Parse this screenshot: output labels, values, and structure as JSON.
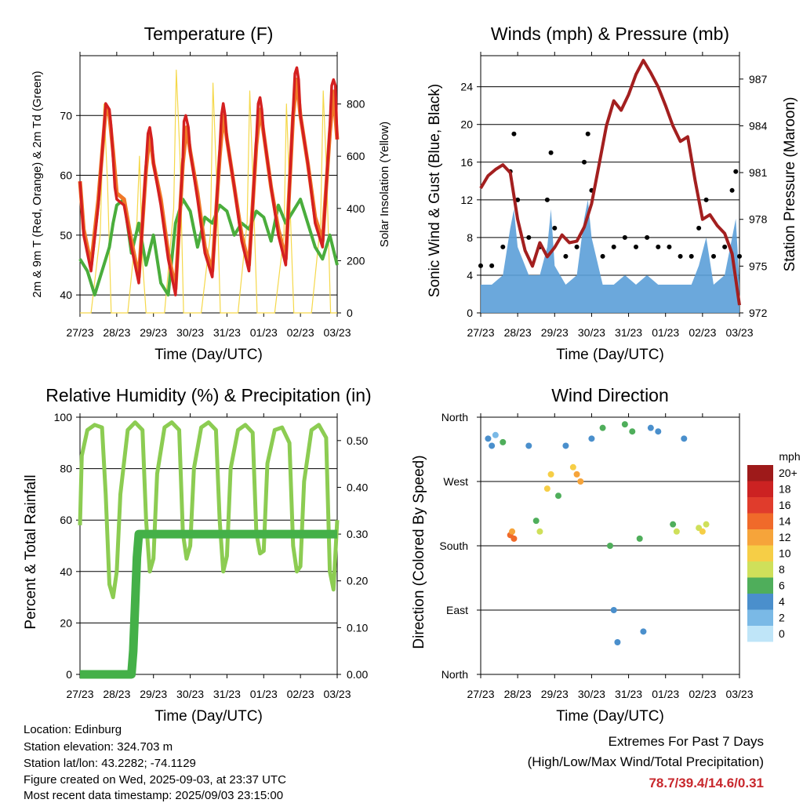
{
  "chart_data": [
    {
      "type": "line",
      "title": "Temperature (F)",
      "xlabel": "Time (Day/UTC)",
      "ylabel": "2m & 9m T (Red, Orange) & 2m Td (Green)",
      "y2label": "Solar Insolation (Yellow)",
      "x_ticks": [
        "27/23",
        "28/23",
        "29/23",
        "30/23",
        "31/23",
        "01/23",
        "02/23",
        "03/23"
      ],
      "ylim": [
        37,
        80
      ],
      "y_ticks": [
        40,
        50,
        60,
        70
      ],
      "y2lim": [
        0,
        985
      ],
      "y2_ticks": [
        0,
        200,
        400,
        600,
        800
      ],
      "grid": true,
      "series": [
        {
          "name": "2m T",
          "color": "#d42020",
          "x": [
            0,
            0.1,
            0.3,
            0.5,
            0.7,
            0.8,
            0.85,
            0.9,
            0.95,
            1.0,
            1.2,
            1.4,
            1.6,
            1.8,
            1.85,
            1.9,
            1.95,
            2.0,
            2.2,
            2.4,
            2.6,
            2.8,
            2.83,
            2.88,
            2.95,
            3.0,
            3.2,
            3.4,
            3.6,
            3.8,
            3.85,
            3.9,
            3.95,
            4.0,
            4.2,
            4.4,
            4.6,
            4.8,
            4.85,
            4.9,
            4.95,
            5.0,
            5.2,
            5.4,
            5.6,
            5.8,
            5.85,
            5.9,
            5.95,
            6.0,
            6.2,
            6.4,
            6.6,
            6.8,
            6.85,
            6.9,
            6.95,
            7.0
          ],
          "values": [
            59,
            50,
            44,
            55,
            72,
            71,
            68,
            63,
            58,
            56,
            55,
            48,
            42,
            62,
            67,
            68,
            66,
            62,
            55,
            46,
            40,
            63,
            69,
            70,
            68,
            64,
            56,
            47,
            43,
            64,
            70,
            72,
            70,
            66,
            58,
            49,
            44,
            66,
            72,
            73,
            71,
            67,
            58,
            50,
            45,
            71,
            77,
            78,
            76,
            70,
            62,
            52,
            48,
            68,
            75,
            76,
            75,
            66
          ]
        },
        {
          "name": "9m T",
          "color": "#f07828",
          "x": [
            0,
            0.1,
            0.3,
            0.5,
            0.7,
            0.8,
            0.9,
            1.0,
            1.2,
            1.4,
            1.6,
            1.8,
            1.9,
            2.0,
            2.2,
            2.4,
            2.6,
            2.8,
            2.9,
            3.0,
            3.2,
            3.4,
            3.6,
            3.8,
            3.9,
            4.0,
            4.2,
            4.4,
            4.6,
            4.8,
            4.9,
            5.0,
            5.2,
            5.4,
            5.6,
            5.8,
            5.9,
            6.0,
            6.2,
            6.4,
            6.6,
            6.8,
            6.9,
            7.0
          ],
          "values": [
            59,
            51,
            45,
            56,
            71,
            70,
            64,
            57,
            56,
            49,
            43,
            61,
            67,
            62,
            56,
            47,
            41,
            62,
            68,
            64,
            57,
            48,
            44,
            63,
            70,
            66,
            58,
            50,
            45,
            65,
            71,
            67,
            58,
            51,
            46,
            70,
            76,
            70,
            62,
            53,
            49,
            67,
            74,
            66
          ]
        },
        {
          "name": "2m Td",
          "color": "#4aad3c",
          "x": [
            0,
            0.2,
            0.4,
            0.6,
            0.8,
            0.9,
            1.0,
            1.2,
            1.4,
            1.6,
            1.8,
            2.0,
            2.2,
            2.4,
            2.6,
            2.8,
            3.0,
            3.2,
            3.4,
            3.6,
            3.8,
            4.0,
            4.2,
            4.4,
            4.6,
            4.8,
            5.0,
            5.2,
            5.4,
            5.6,
            5.8,
            6.0,
            6.2,
            6.4,
            6.6,
            6.8,
            7.0
          ],
          "values": [
            46,
            44,
            40,
            44,
            48,
            52,
            55,
            56,
            47,
            52,
            45,
            50,
            42,
            40,
            52,
            56,
            54,
            48,
            53,
            52,
            55,
            54,
            50,
            52,
            51,
            54,
            53,
            49,
            55,
            52,
            54,
            56,
            52,
            48,
            46,
            50,
            45
          ]
        },
        {
          "name": "Solar Insolation",
          "color": "#f5d84a",
          "axis": "right",
          "x": [
            0,
            0.3,
            0.55,
            0.65,
            0.75,
            0.85,
            1.3,
            1.55,
            1.62,
            1.7,
            1.8,
            2.3,
            2.55,
            2.62,
            2.72,
            2.82,
            3.3,
            3.55,
            3.62,
            3.72,
            3.82,
            4.3,
            4.55,
            4.62,
            4.72,
            4.82,
            5.3,
            5.55,
            5.62,
            5.72,
            5.82,
            6.3,
            6.55,
            6.62,
            6.72,
            6.82,
            7.0
          ],
          "values": [
            0,
            0,
            300,
            800,
            500,
            0,
            0,
            350,
            600,
            200,
            0,
            0,
            400,
            930,
            600,
            0,
            0,
            300,
            880,
            500,
            0,
            0,
            350,
            850,
            450,
            0,
            0,
            300,
            800,
            400,
            0,
            0,
            350,
            850,
            500,
            0,
            0
          ]
        }
      ]
    },
    {
      "type": "scatter",
      "title": "Winds (mph) & Pressure (mb)",
      "xlabel": "Time (Day/UTC)",
      "ylabel": "Sonic Wind & Gust (Blue, Black)",
      "y2label": "Station Pressure (Maroon)",
      "x_ticks": [
        "27/23",
        "28/23",
        "29/23",
        "30/23",
        "31/23",
        "01/23",
        "02/23",
        "03/23"
      ],
      "ylim": [
        0,
        27.3
      ],
      "y_ticks": [
        0,
        4,
        8,
        12,
        16,
        20,
        24
      ],
      "y2lim": [
        972,
        988.5
      ],
      "y2_ticks": [
        972,
        975,
        978,
        981,
        984,
        987
      ],
      "grid": true,
      "series": [
        {
          "name": "Gust",
          "color": "#000000",
          "x": [
            0,
            0.3,
            0.6,
            0.8,
            0.9,
            1.0,
            1.3,
            1.6,
            1.8,
            1.9,
            2.0,
            2.3,
            2.6,
            2.8,
            2.9,
            3.0,
            3.3,
            3.6,
            3.9,
            4.2,
            4.5,
            4.8,
            5.1,
            5.4,
            5.7,
            5.9,
            6.1,
            6.3,
            6.6,
            6.8,
            6.9,
            7.0
          ],
          "values": [
            5,
            5,
            7,
            15,
            19,
            12,
            8,
            7,
            12,
            17,
            9,
            6,
            7,
            16,
            19,
            13,
            6,
            7,
            8,
            7,
            8,
            7,
            7,
            6,
            6,
            9,
            12,
            6,
            7,
            13,
            15,
            6
          ]
        },
        {
          "name": "Sonic Wind",
          "color": "#5b9fd8",
          "x": [
            0,
            0.3,
            0.6,
            0.8,
            0.9,
            1.0,
            1.3,
            1.6,
            1.8,
            1.9,
            2.0,
            2.3,
            2.6,
            2.8,
            2.9,
            3.0,
            3.3,
            3.6,
            3.9,
            4.2,
            4.5,
            4.8,
            5.1,
            5.4,
            5.7,
            5.9,
            6.1,
            6.3,
            6.6,
            6.8,
            6.9,
            7.0
          ],
          "values": [
            3,
            3,
            4,
            9,
            11,
            7,
            4,
            4,
            7,
            11,
            5,
            3,
            4,
            10,
            12,
            8,
            3,
            3,
            4,
            3,
            4,
            3,
            3,
            3,
            3,
            5,
            8,
            3,
            4,
            8,
            10,
            3
          ]
        },
        {
          "name": "Station Pressure",
          "color": "#a31f1f",
          "axis": "right",
          "x": [
            0,
            0.2,
            0.4,
            0.6,
            0.8,
            1.0,
            1.2,
            1.4,
            1.6,
            1.8,
            2.0,
            2.2,
            2.4,
            2.6,
            2.8,
            3.0,
            3.2,
            3.4,
            3.6,
            3.8,
            4.0,
            4.2,
            4.4,
            4.6,
            4.8,
            5.0,
            5.2,
            5.4,
            5.6,
            5.8,
            6.0,
            6.2,
            6.4,
            6.6,
            6.8,
            7.0
          ],
          "values": [
            980,
            980.8,
            981.2,
            981.5,
            981,
            978,
            976,
            975,
            976.5,
            975.6,
            976.2,
            977,
            976.5,
            976.6,
            977.5,
            979,
            981.5,
            984,
            985.6,
            985,
            986,
            987.3,
            988.2,
            987.4,
            986.5,
            985.3,
            984,
            983,
            983.3,
            980.5,
            978,
            978.3,
            977.6,
            977.1,
            975.8,
            972.5
          ]
        }
      ]
    },
    {
      "type": "line",
      "title": "Relative Humidity (%) & Precipitation (in)",
      "xlabel": "Time (Day/UTC)",
      "ylabel": "Percent & Total Rainfall",
      "x_ticks": [
        "27/23",
        "28/23",
        "29/23",
        "30/23",
        "31/23",
        "01/23",
        "02/23",
        "03/23"
      ],
      "ylim": [
        0,
        100
      ],
      "y_ticks": [
        0,
        20,
        40,
        60,
        80,
        100
      ],
      "y2lim": [
        0,
        0.55
      ],
      "y2_ticks": [
        "0.00",
        "0.10",
        "0.20",
        "0.30",
        "0.40",
        "0.50"
      ],
      "grid": true,
      "series": [
        {
          "name": "Relative Humidity",
          "color": "#8ccc52",
          "x": [
            0,
            0.05,
            0.2,
            0.4,
            0.6,
            0.7,
            0.8,
            0.9,
            1.0,
            1.1,
            1.3,
            1.5,
            1.7,
            1.8,
            1.9,
            2.0,
            2.1,
            2.3,
            2.5,
            2.7,
            2.8,
            2.9,
            3.0,
            3.1,
            3.3,
            3.5,
            3.7,
            3.8,
            3.9,
            4.0,
            4.1,
            4.3,
            4.5,
            4.7,
            4.8,
            4.9,
            5.0,
            5.1,
            5.3,
            5.5,
            5.7,
            5.8,
            5.9,
            6.0,
            6.1,
            6.3,
            6.5,
            6.7,
            6.8,
            6.9,
            7.0
          ],
          "values": [
            58,
            85,
            95,
            97,
            96,
            70,
            35,
            30,
            40,
            70,
            95,
            98,
            95,
            60,
            40,
            45,
            78,
            96,
            98,
            95,
            55,
            45,
            50,
            80,
            96,
            98,
            95,
            60,
            40,
            46,
            80,
            95,
            97,
            94,
            55,
            47,
            48,
            82,
            95,
            96,
            90,
            50,
            40,
            42,
            75,
            95,
            97,
            92,
            40,
            33,
            60
          ]
        },
        {
          "name": "Total Rainfall",
          "color": "#44b048",
          "axis": "right",
          "x": [
            0,
            1.0,
            1.4,
            1.45,
            1.5,
            1.55,
            1.6,
            7.0
          ],
          "values": [
            0,
            0,
            0,
            0.05,
            0.15,
            0.25,
            0.3,
            0.3
          ]
        }
      ]
    },
    {
      "type": "scatter",
      "title": "Wind Direction",
      "xlabel": "Time (Day/UTC)",
      "ylabel": "Direction (Colored By Speed)",
      "x_ticks": [
        "27/23",
        "28/23",
        "29/23",
        "30/23",
        "31/23",
        "01/23",
        "02/23",
        "03/23"
      ],
      "y_ticks": [
        "North",
        "East",
        "South",
        "West",
        "North"
      ],
      "grid": true,
      "legend": {
        "title": "mph",
        "labels": [
          "20+",
          "18",
          "16",
          "14",
          "12",
          "10",
          "8",
          "6",
          "4",
          "2",
          "0"
        ],
        "colors": [
          "#9e1a1a",
          "#cc2222",
          "#e03c2c",
          "#f06a2a",
          "#f6a43a",
          "#f6ce46",
          "#cfe05a",
          "#4fae5b",
          "#4a8fcc",
          "#7ab9e6",
          "#bfe5f8"
        ],
        "placement": "right"
      },
      "points": [
        {
          "x": 0.2,
          "dir": 330,
          "speed": 3
        },
        {
          "x": 0.3,
          "dir": 320,
          "speed": 4
        },
        {
          "x": 0.4,
          "dir": 335,
          "speed": 2
        },
        {
          "x": 0.6,
          "dir": 325,
          "speed": 5
        },
        {
          "x": 0.8,
          "dir": 195,
          "speed": 13
        },
        {
          "x": 0.85,
          "dir": 200,
          "speed": 11
        },
        {
          "x": 0.9,
          "dir": 190,
          "speed": 14
        },
        {
          "x": 1.3,
          "dir": 320,
          "speed": 4
        },
        {
          "x": 1.5,
          "dir": 215,
          "speed": 5
        },
        {
          "x": 1.6,
          "dir": 200,
          "speed": 7
        },
        {
          "x": 1.8,
          "dir": 260,
          "speed": 9
        },
        {
          "x": 1.9,
          "dir": 280,
          "speed": 10
        },
        {
          "x": 2.1,
          "dir": 250,
          "speed": 6
        },
        {
          "x": 2.3,
          "dir": 320,
          "speed": 4
        },
        {
          "x": 2.5,
          "dir": 290,
          "speed": 9
        },
        {
          "x": 2.6,
          "dir": 280,
          "speed": 12
        },
        {
          "x": 2.7,
          "dir": 270,
          "speed": 11
        },
        {
          "x": 3.0,
          "dir": 330,
          "speed": 4
        },
        {
          "x": 3.3,
          "dir": 345,
          "speed": 5
        },
        {
          "x": 3.5,
          "dir": 180,
          "speed": 5
        },
        {
          "x": 3.6,
          "dir": 90,
          "speed": 4
        },
        {
          "x": 3.7,
          "dir": 45,
          "speed": 3
        },
        {
          "x": 3.9,
          "dir": 350,
          "speed": 6
        },
        {
          "x": 4.1,
          "dir": 340,
          "speed": 5
        },
        {
          "x": 4.3,
          "dir": 190,
          "speed": 5
        },
        {
          "x": 4.4,
          "dir": 60,
          "speed": 4
        },
        {
          "x": 4.6,
          "dir": 345,
          "speed": 4
        },
        {
          "x": 4.8,
          "dir": 340,
          "speed": 3
        },
        {
          "x": 5.2,
          "dir": 210,
          "speed": 6
        },
        {
          "x": 5.3,
          "dir": 200,
          "speed": 8
        },
        {
          "x": 5.5,
          "dir": 330,
          "speed": 4
        },
        {
          "x": 5.9,
          "dir": 205,
          "speed": 7
        },
        {
          "x": 6.0,
          "dir": 200,
          "speed": 9
        },
        {
          "x": 6.1,
          "dir": 210,
          "speed": 8
        }
      ]
    }
  ],
  "footer": {
    "location": "Location: Edinburg",
    "elevation": "Station elevation: 324.703 m",
    "latlon": "Station lat/lon: 43.2282; -74.1129",
    "created": "Figure created on Wed, 2025-09-03, at 23:37 UTC",
    "recent": "Most recent data timestamp: 2025/09/03 23:15:00"
  },
  "extremes": {
    "heading": "Extremes For Past 7 Days",
    "subheading": "(High/Low/Max Wind/Total Precipitation)",
    "values": "78.7/39.4/14.6/0.31",
    "color": "#c8282d"
  }
}
